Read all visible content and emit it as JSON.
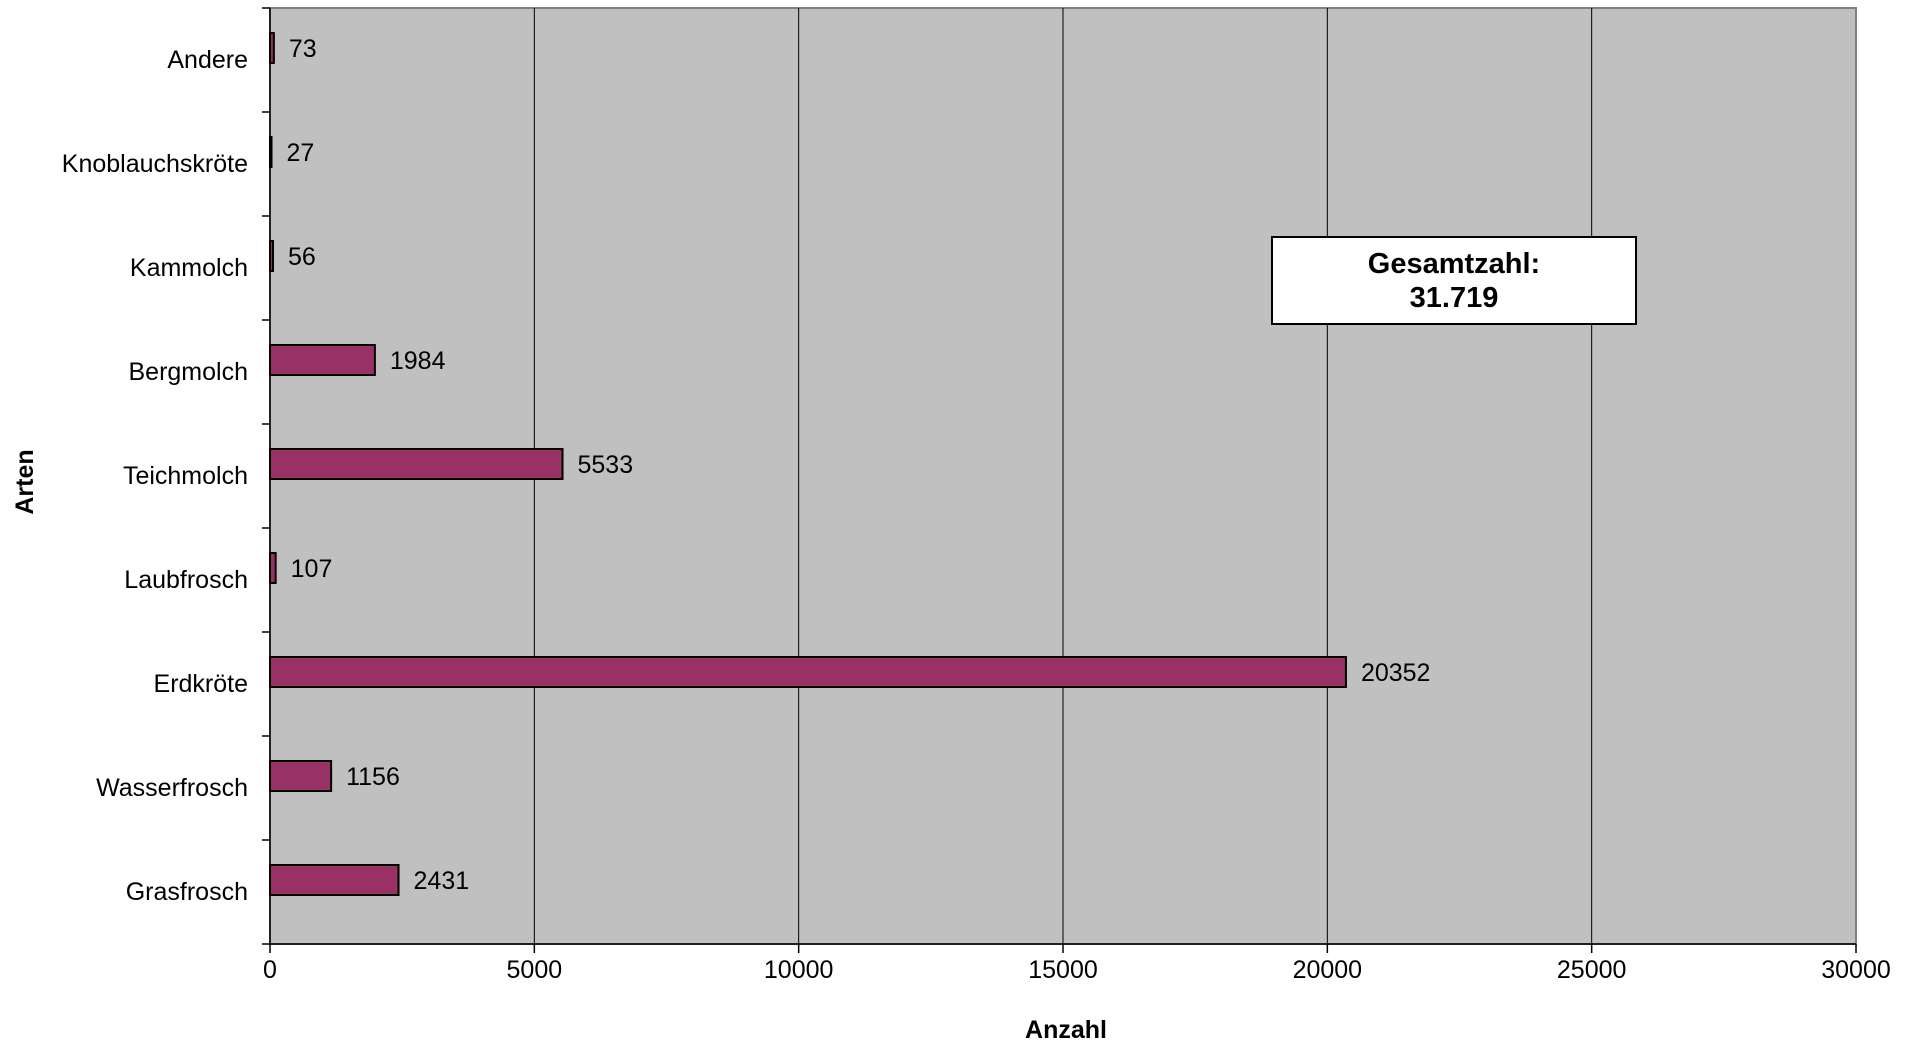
{
  "chart_data": {
    "type": "bar",
    "orientation": "horizontal",
    "categories": [
      "Grasfrosch",
      "Wasserfrosch",
      "Erdkröte",
      "Laubfrosch",
      "Teichmolch",
      "Bergmolch",
      "Kammolch",
      "Knoblauchskröte",
      "Andere"
    ],
    "values": [
      2431,
      1156,
      20352,
      107,
      5533,
      1984,
      56,
      27,
      73
    ],
    "data_labels": [
      "2431",
      "1156",
      "20352",
      "107",
      "5533",
      "1984",
      "56",
      "27",
      "73"
    ],
    "xlabel": "Anzahl",
    "ylabel": "Arten",
    "xlim": [
      0,
      30000
    ],
    "xticks": [
      "0",
      "5000",
      "10000",
      "15000",
      "20000",
      "25000",
      "30000"
    ],
    "grid": "vertical major gridlines",
    "legend": "none",
    "annotation": {
      "line1": "Gesamtzahl:",
      "line2": "31.719",
      "placement": "upper-right"
    },
    "colors": {
      "bar_fill": "#993366",
      "bar_stroke": "#000000",
      "plot_background": "#c0c0c0",
      "gridline": "#000000"
    }
  }
}
